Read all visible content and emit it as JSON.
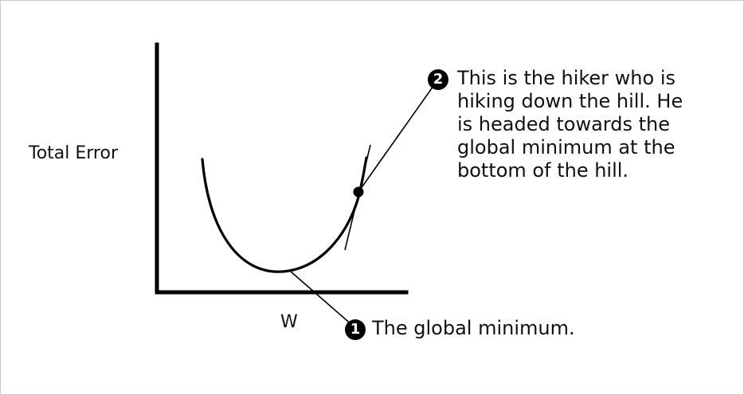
{
  "diagram": {
    "y_axis_label": "Total Error",
    "x_axis_label": "W",
    "callouts": [
      {
        "number": "1",
        "text": "The global minimum."
      },
      {
        "number": "2",
        "lines": [
          "This is the hiker who is",
          "hiking down the hill. He",
          "is headed towards the",
          "global minimum at the",
          "bottom of the hill."
        ]
      }
    ],
    "colors": {
      "stroke": "#000000",
      "text": "#111111",
      "border": "#c9c9c9",
      "background": "#ffffff"
    }
  }
}
